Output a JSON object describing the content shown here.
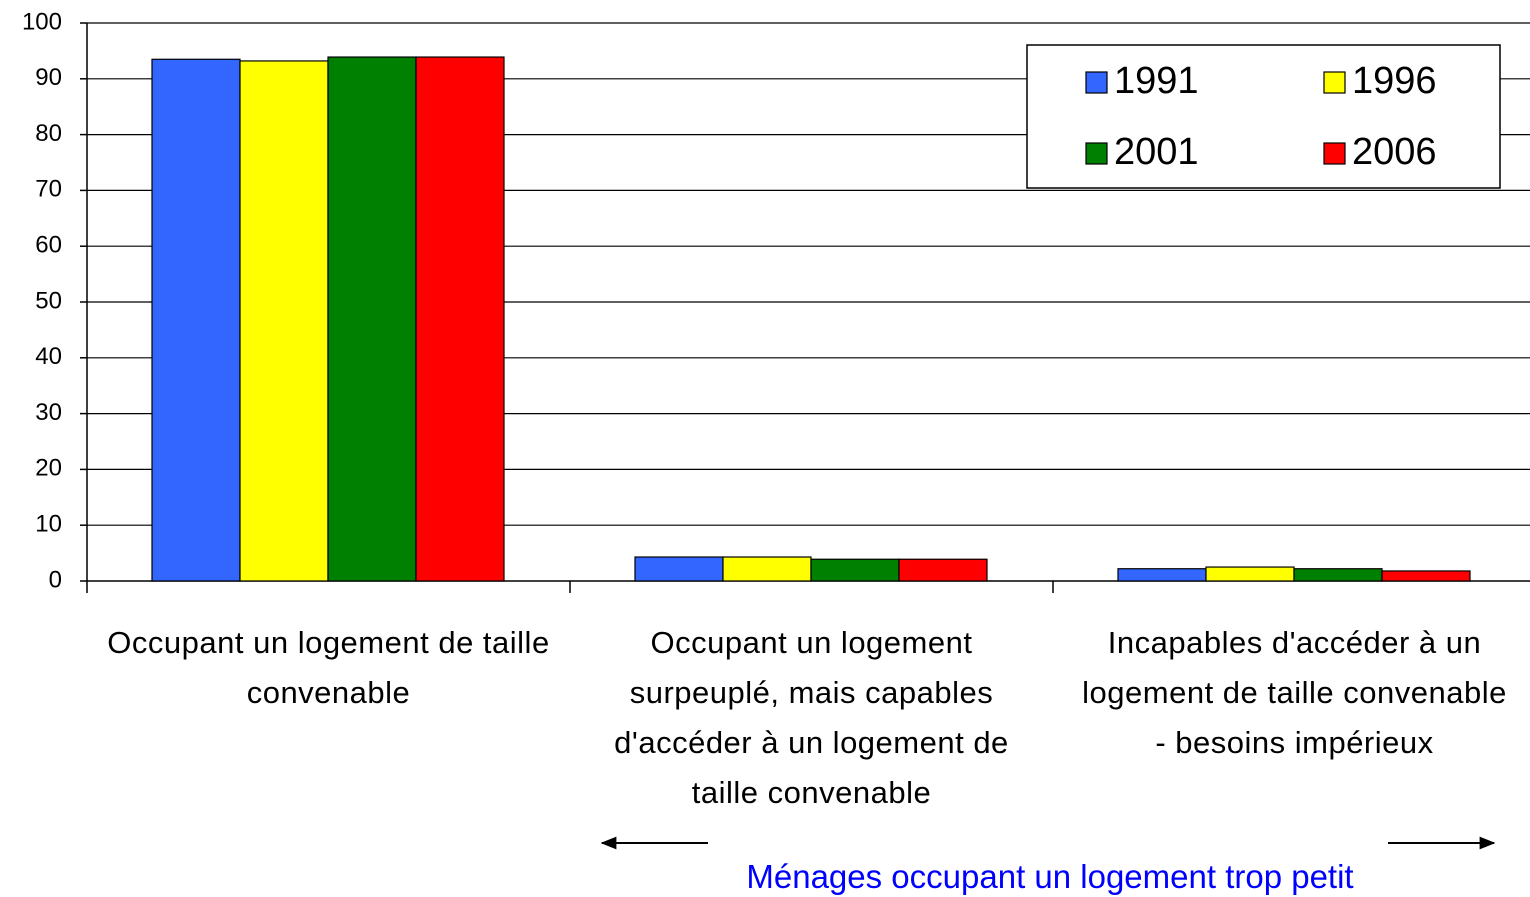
{
  "chart_data": {
    "type": "bar",
    "categories": [
      "Occupant un logement de taille convenable",
      "Occupant un logement surpeuplé, mais capables d'accéder à un logement de taille convenable",
      "Incapables d'accéder à un logement de taille convenable - besoins impérieux"
    ],
    "series": [
      {
        "name": "1991",
        "color": "#3366ff",
        "values": [
          93.5,
          4.3,
          2.2
        ]
      },
      {
        "name": "1996",
        "color": "#ffff00",
        "values": [
          93.2,
          4.3,
          2.5
        ]
      },
      {
        "name": "2001",
        "color": "#008000",
        "values": [
          93.9,
          3.9,
          2.2
        ]
      },
      {
        "name": "2006",
        "color": "#ff0000",
        "values": [
          93.9,
          3.9,
          1.8
        ]
      }
    ],
    "ylim": [
      0,
      100
    ],
    "yticks": [
      0,
      10,
      20,
      30,
      40,
      50,
      60,
      70,
      80,
      90,
      100
    ],
    "grid": true,
    "legend": "upper right",
    "annotation": "Ménages occupant un logement trop petit"
  }
}
